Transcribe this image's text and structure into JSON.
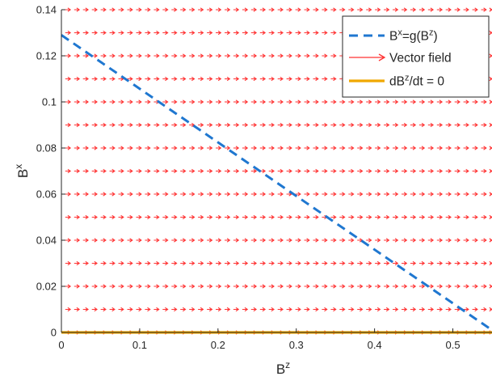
{
  "chart_data": {
    "type": "line",
    "title": "",
    "xlabel": {
      "base": "B",
      "sup": "z"
    },
    "ylabel": {
      "base": "B",
      "sup": "x"
    },
    "xlim": [
      0,
      0.55
    ],
    "ylim": [
      0,
      0.14
    ],
    "x_ticks": [
      0,
      0.1,
      0.2,
      0.3,
      0.4,
      0.5
    ],
    "x_tick_labels": [
      "0",
      "0.1",
      "0.2",
      "0.3",
      "0.4",
      "0.5"
    ],
    "y_ticks": [
      0,
      0.02,
      0.04,
      0.06,
      0.08,
      0.1,
      0.12,
      0.14
    ],
    "y_tick_labels": [
      "0",
      "0.02",
      "0.04",
      "0.06",
      "0.08",
      "0.1",
      "0.12",
      "0.14"
    ],
    "grid": false,
    "legend": {
      "position": "top-right",
      "entries": [
        {
          "key": "g",
          "parts": [
            [
              "B",
              ""
            ],
            [
              "x",
              "sup"
            ],
            [
              "=g(B",
              ""
            ],
            [
              "z",
              "sup"
            ],
            [
              ")",
              ""
            ]
          ]
        },
        {
          "key": "field",
          "parts": [
            [
              "Vector field",
              ""
            ]
          ]
        },
        {
          "key": "nullcline",
          "parts": [
            [
              "dB",
              ""
            ],
            [
              "z",
              "sup"
            ],
            [
              "/dt = 0",
              ""
            ]
          ]
        }
      ]
    },
    "series": [
      {
        "key": "g",
        "style": "dashed",
        "color": "#1f77d0",
        "x": [
          0,
          0.55
        ],
        "y": [
          0.129,
          0.001
        ]
      },
      {
        "key": "field",
        "style": "arrows",
        "color": "#ff3333",
        "row_y": [
          0,
          0.01,
          0.02,
          0.03,
          0.04,
          0.05,
          0.06,
          0.07,
          0.08,
          0.09,
          0.1,
          0.11,
          0.12,
          0.13,
          0.14
        ],
        "arrow_x_start": 0.005,
        "arrow_x_step": 0.0113,
        "arrow_dx": 0.0065,
        "direction": "right"
      },
      {
        "key": "nullcline",
        "style": "solid",
        "color": "#f0a800",
        "x": [
          0,
          0.55
        ],
        "y": [
          0,
          0
        ]
      }
    ]
  }
}
